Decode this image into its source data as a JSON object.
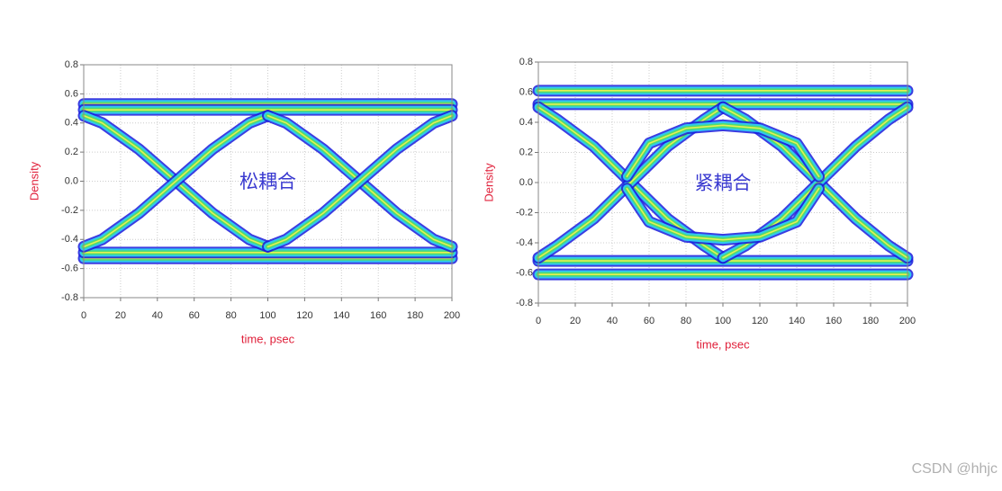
{
  "chart_data": [
    {
      "type": "eye",
      "annotation": "松耦合",
      "xlabel": "time, psec",
      "ylabel": "Density",
      "xlim": [
        0,
        200
      ],
      "ylim": [
        -0.8,
        0.8
      ],
      "xticks": [
        0,
        20,
        40,
        60,
        80,
        100,
        120,
        140,
        160,
        180,
        200
      ],
      "yticks": [
        0.8,
        0.6,
        0.4,
        0.2,
        {
          "value": 0,
          "label": "0.0"
        },
        -0.2,
        -0.4,
        -0.6,
        -0.8
      ],
      "grid": true,
      "colors": [
        "#1a1adc",
        "#30c8f0",
        "#50dc70",
        "#e8f050"
      ],
      "series": [
        {
          "x": [
            0,
            200
          ],
          "values": [
            0.53,
            0.53
          ]
        },
        {
          "x": [
            0,
            200
          ],
          "values": [
            -0.53,
            -0.53
          ]
        },
        {
          "x": [
            0,
            200
          ],
          "values": [
            0.49,
            0.49
          ]
        },
        {
          "x": [
            0,
            200
          ],
          "values": [
            -0.49,
            -0.49
          ]
        },
        {
          "x": [
            0,
            10,
            30,
            50,
            70,
            90,
            100
          ],
          "values": [
            0.45,
            0.4,
            0.22,
            0,
            -0.22,
            -0.4,
            -0.45
          ]
        },
        {
          "x": [
            0,
            10,
            30,
            50,
            70,
            90,
            100
          ],
          "values": [
            -0.45,
            -0.4,
            -0.22,
            0,
            0.22,
            0.4,
            0.45
          ]
        },
        {
          "x": [
            100,
            110,
            130,
            150,
            170,
            190,
            200
          ],
          "values": [
            0.45,
            0.4,
            0.22,
            0,
            -0.22,
            -0.4,
            -0.45
          ]
        },
        {
          "x": [
            100,
            110,
            130,
            150,
            170,
            190,
            200
          ],
          "values": [
            -0.45,
            -0.4,
            -0.22,
            0,
            0.22,
            0.4,
            0.45
          ]
        }
      ]
    },
    {
      "type": "eye",
      "annotation": "紧耦合",
      "xlabel": "time, psec",
      "ylabel": "Density",
      "xlim": [
        0,
        200
      ],
      "ylim": [
        -0.8,
        0.8
      ],
      "xticks": [
        0,
        20,
        40,
        60,
        80,
        100,
        120,
        140,
        160,
        180,
        200
      ],
      "yticks": [
        0.8,
        0.6,
        0.4,
        0.2,
        {
          "value": 0,
          "label": "0.0"
        },
        -0.2,
        -0.4,
        -0.6,
        -0.8
      ],
      "grid": true,
      "colors": [
        "#1a1adc",
        "#30c8f0",
        "#50dc70",
        "#e8f050"
      ],
      "series": [
        {
          "x": [
            0,
            200
          ],
          "values": [
            0.61,
            0.61
          ]
        },
        {
          "x": [
            0,
            200
          ],
          "values": [
            -0.61,
            -0.61
          ]
        },
        {
          "x": [
            0,
            200
          ],
          "values": [
            0.52,
            0.52
          ]
        },
        {
          "x": [
            0,
            200
          ],
          "values": [
            -0.52,
            -0.52
          ]
        },
        {
          "x": [
            0,
            10,
            30,
            50,
            70,
            90,
            100
          ],
          "values": [
            0.5,
            0.42,
            0.24,
            0,
            -0.24,
            -0.42,
            -0.5
          ]
        },
        {
          "x": [
            0,
            10,
            30,
            50,
            70,
            90,
            100
          ],
          "values": [
            -0.5,
            -0.42,
            -0.24,
            0,
            0.24,
            0.42,
            0.5
          ]
        },
        {
          "x": [
            100,
            112,
            132,
            152,
            172,
            190,
            200
          ],
          "values": [
            0.5,
            0.42,
            0.24,
            0,
            -0.24,
            -0.42,
            -0.5
          ]
        },
        {
          "x": [
            100,
            112,
            132,
            152,
            172,
            190,
            200
          ],
          "values": [
            -0.5,
            -0.42,
            -0.24,
            0,
            0.24,
            0.42,
            0.5
          ]
        },
        {
          "x": [
            48,
            60,
            80,
            100,
            120,
            140,
            152
          ],
          "values": [
            0.04,
            0.26,
            0.36,
            0.38,
            0.36,
            0.26,
            0.04
          ]
        },
        {
          "x": [
            48,
            60,
            80,
            100,
            120,
            140,
            152
          ],
          "values": [
            -0.04,
            -0.26,
            -0.36,
            -0.38,
            -0.36,
            -0.26,
            -0.04
          ]
        }
      ]
    }
  ],
  "watermark": "CSDN @hhjc"
}
